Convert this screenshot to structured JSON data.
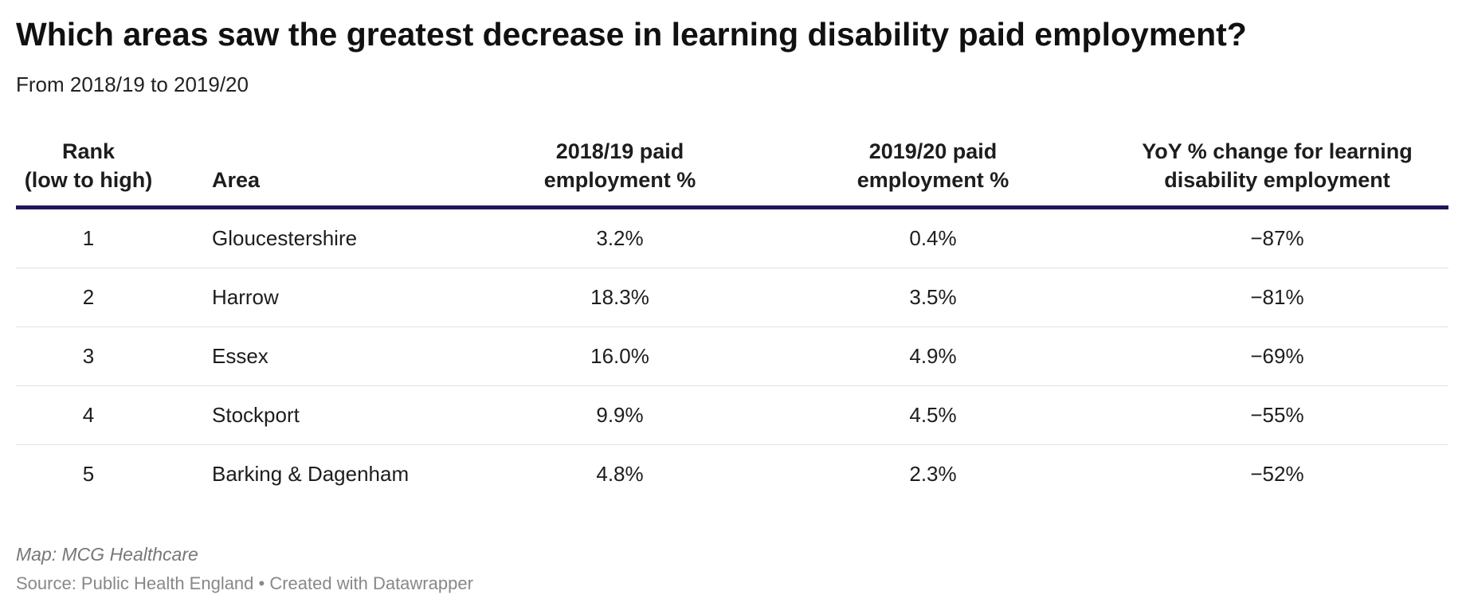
{
  "header": {
    "title": "Which areas saw the greatest decrease in learning disability paid employment?",
    "subtitle": "From 2018/19 to 2019/20"
  },
  "table": {
    "columns": [
      "Rank\n(low to high)",
      "Area",
      "2018/19 paid\nemployment %",
      "2019/20 paid\nemployment %",
      "YoY % change for learning\ndisability employment"
    ],
    "rows": [
      [
        "1",
        "Gloucestershire",
        "3.2%",
        "0.4%",
        "−87%"
      ],
      [
        "2",
        "Harrow",
        "18.3%",
        "3.5%",
        "−81%"
      ],
      [
        "3",
        "Essex",
        "16.0%",
        "4.9%",
        "−69%"
      ],
      [
        "4",
        "Stockport",
        "9.9%",
        "4.5%",
        "−55%"
      ],
      [
        "5",
        "Barking & Dagenham",
        "4.8%",
        "2.3%",
        "−52%"
      ]
    ]
  },
  "footer": {
    "note": "Map: MCG Healthcare",
    "source": "Source: Public Health England • Created with Datawrapper"
  }
}
